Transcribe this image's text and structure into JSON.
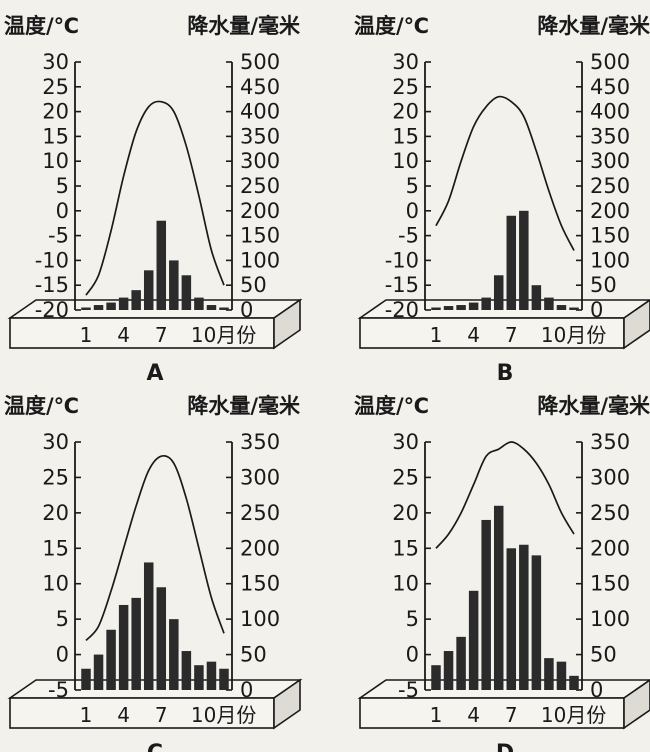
{
  "chart_data": [
    {
      "type": "bar",
      "title": "A",
      "left_axis_title": "温度/℃",
      "right_axis_title": "降水量/毫米",
      "x_tick_labels": [
        "1",
        "4",
        "7",
        "10月份"
      ],
      "months": [
        1,
        2,
        3,
        4,
        5,
        6,
        7,
        8,
        9,
        10,
        11,
        12
      ],
      "temperature_ylim": [
        -20,
        30
      ],
      "temperature_ticks": [
        "30",
        "25",
        "20",
        "15",
        "10",
        "5",
        "0",
        "-5",
        "-10",
        "-15",
        "-20"
      ],
      "precipitation_ylim": [
        0,
        500
      ],
      "precipitation_ticks": [
        "500",
        "450",
        "400",
        "350",
        "300",
        "250",
        "200",
        "150",
        "100",
        "50",
        "0"
      ],
      "series": [
        {
          "type": "line",
          "axis": "temperature",
          "values": [
            -17,
            -13,
            -4,
            7,
            16,
            21,
            22,
            20,
            13,
            3,
            -8,
            -15
          ]
        },
        {
          "type": "bar",
          "axis": "precipitation",
          "values": [
            5,
            10,
            15,
            25,
            40,
            80,
            180,
            100,
            70,
            25,
            10,
            5
          ]
        }
      ]
    },
    {
      "type": "bar",
      "title": "B",
      "left_axis_title": "温度/℃",
      "right_axis_title": "降水量/毫米",
      "x_tick_labels": [
        "1",
        "4",
        "7",
        "10月份"
      ],
      "months": [
        1,
        2,
        3,
        4,
        5,
        6,
        7,
        8,
        9,
        10,
        11,
        12
      ],
      "temperature_ylim": [
        -20,
        30
      ],
      "temperature_ticks": [
        "30",
        "25",
        "20",
        "15",
        "10",
        "5",
        "0",
        "-5",
        "-10",
        "-15",
        "-20"
      ],
      "precipitation_ylim": [
        0,
        500
      ],
      "precipitation_ticks": [
        "500",
        "450",
        "400",
        "350",
        "300",
        "250",
        "200",
        "150",
        "100",
        "50",
        "0"
      ],
      "series": [
        {
          "type": "line",
          "axis": "temperature",
          "values": [
            -3,
            2,
            10,
            17,
            21,
            23,
            22,
            19,
            12,
            4,
            -3,
            -8
          ]
        },
        {
          "type": "bar",
          "axis": "precipitation",
          "values": [
            5,
            8,
            10,
            15,
            25,
            70,
            190,
            200,
            50,
            25,
            10,
            5
          ]
        }
      ]
    },
    {
      "type": "bar",
      "title": "C",
      "left_axis_title": "温度/℃",
      "right_axis_title": "降水量/毫米",
      "x_tick_labels": [
        "1",
        "4",
        "7",
        "10月份"
      ],
      "months": [
        1,
        2,
        3,
        4,
        5,
        6,
        7,
        8,
        9,
        10,
        11,
        12
      ],
      "temperature_ylim": [
        -5,
        30
      ],
      "temperature_ticks": [
        "30",
        "25",
        "20",
        "15",
        "10",
        "5",
        "0",
        "-5"
      ],
      "precipitation_ylim": [
        0,
        350
      ],
      "precipitation_ticks": [
        "350",
        "300",
        "250",
        "200",
        "150",
        "100",
        "50",
        "0"
      ],
      "series": [
        {
          "type": "line",
          "axis": "temperature",
          "values": [
            2,
            4,
            9,
            15,
            21,
            26,
            28,
            27,
            22,
            15,
            8,
            3
          ]
        },
        {
          "type": "bar",
          "axis": "precipitation",
          "values": [
            30,
            50,
            85,
            120,
            130,
            180,
            145,
            100,
            55,
            35,
            40,
            30
          ]
        }
      ]
    },
    {
      "type": "bar",
      "title": "D",
      "left_axis_title": "温度/℃",
      "right_axis_title": "降水量/毫米",
      "x_tick_labels": [
        "1",
        "4",
        "7",
        "10月份"
      ],
      "months": [
        1,
        2,
        3,
        4,
        5,
        6,
        7,
        8,
        9,
        10,
        11,
        12
      ],
      "temperature_ylim": [
        -5,
        30
      ],
      "temperature_ticks": [
        "30",
        "25",
        "20",
        "15",
        "10",
        "5",
        "0",
        "-5"
      ],
      "precipitation_ylim": [
        0,
        350
      ],
      "precipitation_ticks": [
        "350",
        "300",
        "250",
        "200",
        "150",
        "100",
        "50",
        "0"
      ],
      "series": [
        {
          "type": "line",
          "axis": "temperature",
          "values": [
            15,
            17,
            20,
            24,
            28,
            29,
            30,
            29,
            27,
            24,
            20,
            17
          ]
        },
        {
          "type": "bar",
          "axis": "precipitation",
          "values": [
            35,
            55,
            75,
            140,
            240,
            260,
            200,
            205,
            190,
            45,
            40,
            20
          ]
        }
      ]
    }
  ]
}
